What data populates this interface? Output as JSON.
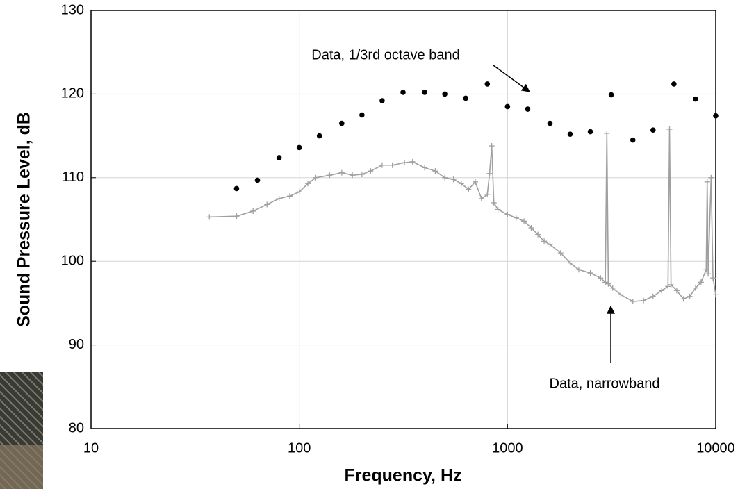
{
  "chart_data": {
    "type": "scatter",
    "x_label": "Frequency, Hz",
    "y_label": "Sound Pressure Level, dB",
    "xscale": "log",
    "xlim": [
      10,
      10000
    ],
    "xticks": [
      10,
      100,
      1000,
      10000
    ],
    "ylim": [
      80,
      130
    ],
    "yticks": [
      80,
      90,
      100,
      110,
      120,
      130
    ],
    "grid": true,
    "series": [
      {
        "name": "Data, 1/3rd octave band",
        "color": "#000000",
        "mode": "markers",
        "x": [
          50,
          63,
          80,
          100,
          125,
          160,
          200,
          250,
          315,
          400,
          500,
          630,
          800,
          1000,
          1250,
          1600,
          2000,
          2500,
          3150,
          4000,
          5000,
          6300,
          8000,
          10000
        ],
        "values": [
          108.7,
          109.7,
          112.4,
          113.6,
          115.0,
          116.5,
          117.5,
          119.2,
          120.2,
          120.2,
          120.0,
          119.5,
          121.2,
          118.5,
          118.2,
          116.5,
          115.2,
          115.5,
          119.9,
          114.5,
          115.7,
          121.2,
          119.4,
          117.4
        ]
      },
      {
        "name": "Data, narrowband",
        "color": "#a0a0a0",
        "mode": "lines+markers",
        "x": [
          37,
          50,
          60,
          70,
          80,
          90,
          100,
          110,
          120,
          140,
          160,
          180,
          200,
          220,
          250,
          280,
          320,
          350,
          400,
          450,
          500,
          550,
          600,
          650,
          700,
          750,
          800,
          820,
          840,
          860,
          900,
          1000,
          1100,
          1200,
          1300,
          1400,
          1500,
          1600,
          1800,
          2000,
          2200,
          2500,
          2800,
          2950,
          3000,
          3050,
          3200,
          3500,
          4000,
          4500,
          5000,
          5500,
          5900,
          6000,
          6100,
          6500,
          7000,
          7500,
          8000,
          8500,
          9000,
          9100,
          9200,
          9500,
          9700,
          10000
        ],
        "values": [
          105.3,
          105.4,
          106.0,
          106.8,
          107.5,
          107.8,
          108.3,
          109.3,
          110.0,
          110.3,
          110.6,
          110.3,
          110.4,
          110.8,
          111.5,
          111.5,
          111.8,
          111.9,
          111.2,
          110.8,
          110.0,
          109.8,
          109.3,
          108.6,
          109.5,
          107.5,
          108.0,
          110.5,
          113.8,
          107.0,
          106.2,
          105.6,
          105.2,
          104.8,
          104.0,
          103.2,
          102.4,
          102.0,
          101.0,
          99.8,
          99.0,
          98.6,
          98.0,
          97.5,
          115.3,
          97.3,
          96.8,
          96.0,
          95.2,
          95.3,
          95.8,
          96.5,
          97.0,
          115.8,
          97.2,
          96.5,
          95.5,
          95.8,
          96.8,
          97.5,
          99.0,
          109.5,
          98.5,
          110.0,
          98.0,
          96.0
        ]
      }
    ]
  }
}
